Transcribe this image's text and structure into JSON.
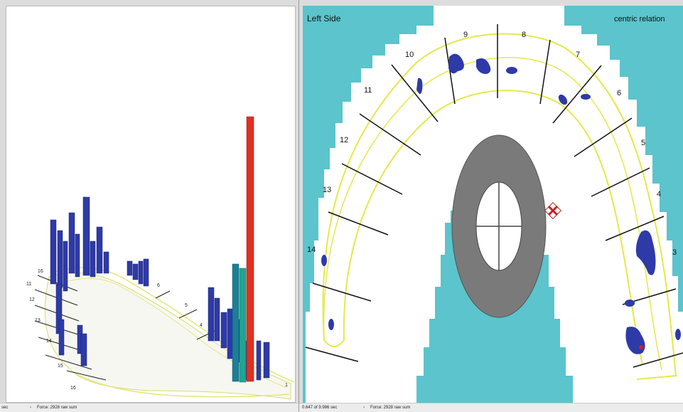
{
  "left_pane": {
    "tooth_labels": [
      "16",
      "11",
      "12",
      "13",
      "14",
      "15",
      "16",
      "6",
      "5",
      "4",
      "1"
    ]
  },
  "right_pane": {
    "side_label": "Left Side",
    "mode_label": "centric relation",
    "tooth_labels": [
      "14",
      "13",
      "12",
      "11",
      "10",
      "9",
      "8",
      "7",
      "6",
      "5",
      "4",
      "3"
    ]
  },
  "status_left": {
    "unit": "sec",
    "force": "Force: 2928 raw sum"
  },
  "status_right": {
    "time": "0.647 of 9.986 sec",
    "force": "Force: 2928 raw sum"
  },
  "colors": {
    "background": "#5bc4cc",
    "arch_outline": "#e5e84a",
    "contact": "#2d3aa8",
    "peak_bar": "#e03020",
    "hotspot": "#d22020"
  }
}
